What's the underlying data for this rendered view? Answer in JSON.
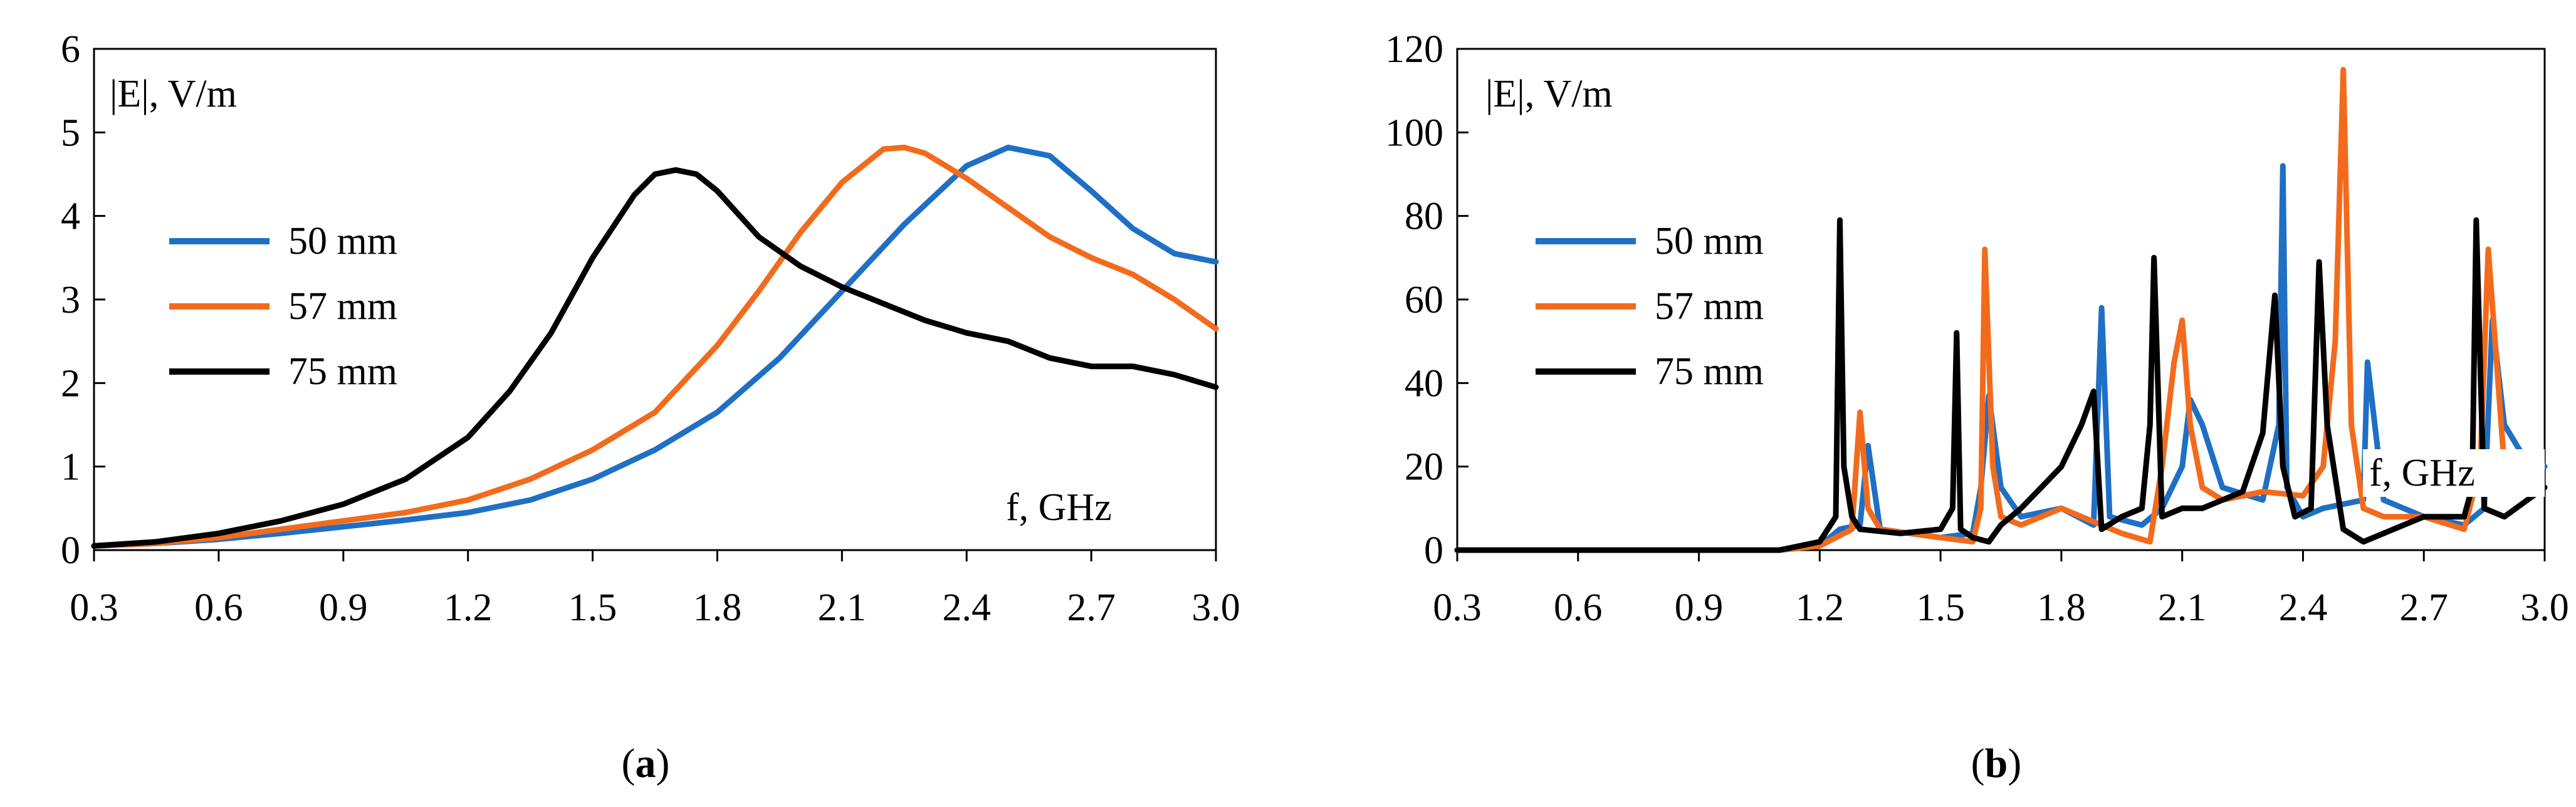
{
  "chart_data": [
    {
      "id": "a",
      "type": "line",
      "caption": "a",
      "ylabel": "|E|, V/m",
      "xlabel": "f, GHz",
      "xlim": [
        0.3,
        3.0
      ],
      "ylim": [
        0,
        6
      ],
      "xticks": [
        0.3,
        0.6,
        0.9,
        1.2,
        1.5,
        1.8,
        2.1,
        2.4,
        2.7,
        3.0
      ],
      "xtick_labels": [
        "0.3",
        "0.6",
        "0.9",
        "1.2",
        "1.5",
        "1.8",
        "2.1",
        "2.4",
        "2.7",
        "3.0"
      ],
      "yticks": [
        0,
        1,
        2,
        3,
        4,
        5,
        6
      ],
      "ytick_labels": [
        "0",
        "1",
        "2",
        "3",
        "4",
        "5",
        "6"
      ],
      "legend_placement": "left",
      "series": [
        {
          "name": "50 mm",
          "color": "#1f6fc5",
          "x": [
            0.3,
            0.45,
            0.6,
            0.75,
            0.9,
            1.05,
            1.2,
            1.35,
            1.5,
            1.65,
            1.8,
            1.95,
            2.1,
            2.25,
            2.4,
            2.5,
            2.6,
            2.7,
            2.8,
            2.9,
            3.0
          ],
          "y": [
            0.05,
            0.08,
            0.13,
            0.2,
            0.28,
            0.36,
            0.45,
            0.6,
            0.85,
            1.2,
            1.65,
            2.3,
            3.1,
            3.9,
            4.6,
            4.82,
            4.72,
            4.3,
            3.85,
            3.55,
            3.45
          ]
        },
        {
          "name": "57 mm",
          "color": "#f26b1d",
          "x": [
            0.3,
            0.45,
            0.6,
            0.75,
            0.9,
            1.05,
            1.2,
            1.35,
            1.5,
            1.65,
            1.8,
            1.9,
            2.0,
            2.1,
            2.2,
            2.25,
            2.3,
            2.4,
            2.5,
            2.6,
            2.7,
            2.8,
            2.9,
            3.0
          ],
          "y": [
            0.05,
            0.08,
            0.15,
            0.25,
            0.35,
            0.45,
            0.6,
            0.85,
            1.2,
            1.65,
            2.45,
            3.1,
            3.8,
            4.4,
            4.8,
            4.82,
            4.75,
            4.45,
            4.1,
            3.75,
            3.5,
            3.3,
            3.0,
            2.65
          ]
        },
        {
          "name": "75 mm",
          "color": "#000000",
          "x": [
            0.3,
            0.45,
            0.6,
            0.75,
            0.9,
            1.05,
            1.2,
            1.3,
            1.4,
            1.5,
            1.6,
            1.65,
            1.7,
            1.75,
            1.8,
            1.9,
            2.0,
            2.1,
            2.2,
            2.3,
            2.4,
            2.5,
            2.6,
            2.7,
            2.8,
            2.9,
            3.0
          ],
          "y": [
            0.05,
            0.1,
            0.2,
            0.35,
            0.55,
            0.85,
            1.35,
            1.9,
            2.6,
            3.5,
            4.25,
            4.5,
            4.55,
            4.5,
            4.3,
            3.75,
            3.4,
            3.15,
            2.95,
            2.75,
            2.6,
            2.5,
            2.3,
            2.2,
            2.2,
            2.1,
            1.95
          ]
        }
      ]
    },
    {
      "id": "b",
      "type": "line",
      "caption": "b",
      "ylabel": "|E|, V/m",
      "xlabel": "f, GHz",
      "xlim": [
        0.3,
        3.0
      ],
      "ylim": [
        0,
        120
      ],
      "xticks": [
        0.3,
        0.6,
        0.9,
        1.2,
        1.5,
        1.8,
        2.1,
        2.4,
        2.7,
        3.0
      ],
      "xtick_labels": [
        "0.3",
        "0.6",
        "0.9",
        "1.2",
        "1.5",
        "1.8",
        "2.1",
        "2.4",
        "2.7",
        "3.0"
      ],
      "yticks": [
        0,
        20,
        40,
        60,
        80,
        100,
        120
      ],
      "ytick_labels": [
        "0",
        "20",
        "40",
        "60",
        "80",
        "100",
        "120"
      ],
      "legend_placement": "left",
      "series": [
        {
          "name": "50 mm",
          "color": "#1f6fc5",
          "x": [
            0.3,
            1.1,
            1.2,
            1.25,
            1.3,
            1.32,
            1.35,
            1.5,
            1.58,
            1.6,
            1.62,
            1.65,
            1.7,
            1.8,
            1.88,
            1.9,
            1.92,
            2.0,
            2.05,
            2.1,
            2.12,
            2.15,
            2.2,
            2.3,
            2.34,
            2.35,
            2.36,
            2.4,
            2.45,
            2.55,
            2.56,
            2.6,
            2.7,
            2.8,
            2.85,
            2.87,
            2.9,
            2.95,
            3.0
          ],
          "y": [
            0,
            0,
            1,
            5,
            6,
            25,
            5,
            3,
            4,
            15,
            37,
            15,
            8,
            10,
            6,
            58,
            8,
            6,
            10,
            20,
            36,
            30,
            15,
            12,
            30,
            92,
            15,
            8,
            10,
            12,
            45,
            12,
            8,
            6,
            10,
            55,
            30,
            22,
            20
          ]
        },
        {
          "name": "57 mm",
          "color": "#f26b1d",
          "x": [
            0.3,
            1.1,
            1.2,
            1.28,
            1.3,
            1.32,
            1.35,
            1.5,
            1.58,
            1.6,
            1.61,
            1.63,
            1.65,
            1.7,
            1.8,
            1.85,
            1.9,
            1.95,
            2.02,
            2.05,
            2.08,
            2.1,
            2.12,
            2.15,
            2.2,
            2.3,
            2.4,
            2.45,
            2.48,
            2.5,
            2.52,
            2.55,
            2.6,
            2.7,
            2.8,
            2.84,
            2.86,
            2.9,
            3.0
          ],
          "y": [
            0,
            0,
            1,
            5,
            33,
            10,
            5,
            3,
            2,
            10,
            72,
            20,
            8,
            6,
            10,
            8,
            6,
            4,
            2,
            20,
            45,
            55,
            30,
            15,
            12,
            14,
            13,
            20,
            50,
            115,
            30,
            10,
            8,
            8,
            5,
            20,
            72,
            20,
            15
          ]
        },
        {
          "name": "75 mm",
          "color": "#000000",
          "x": [
            0.3,
            1.1,
            1.2,
            1.24,
            1.25,
            1.26,
            1.28,
            1.3,
            1.4,
            1.5,
            1.53,
            1.54,
            1.55,
            1.58,
            1.62,
            1.65,
            1.7,
            1.75,
            1.8,
            1.85,
            1.88,
            1.9,
            1.95,
            2.0,
            2.02,
            2.03,
            2.05,
            2.1,
            2.15,
            2.2,
            2.25,
            2.3,
            2.33,
            2.35,
            2.38,
            2.42,
            2.44,
            2.46,
            2.5,
            2.55,
            2.6,
            2.7,
            2.8,
            2.82,
            2.83,
            2.85,
            2.9,
            3.0
          ],
          "y": [
            0,
            0,
            2,
            8,
            79,
            20,
            8,
            5,
            4,
            5,
            10,
            52,
            5,
            3,
            2,
            6,
            10,
            15,
            20,
            30,
            38,
            5,
            8,
            10,
            30,
            70,
            8,
            10,
            10,
            12,
            14,
            28,
            61,
            20,
            8,
            10,
            69,
            30,
            5,
            2,
            4,
            8,
            8,
            15,
            79,
            10,
            8,
            15
          ]
        }
      ]
    }
  ]
}
